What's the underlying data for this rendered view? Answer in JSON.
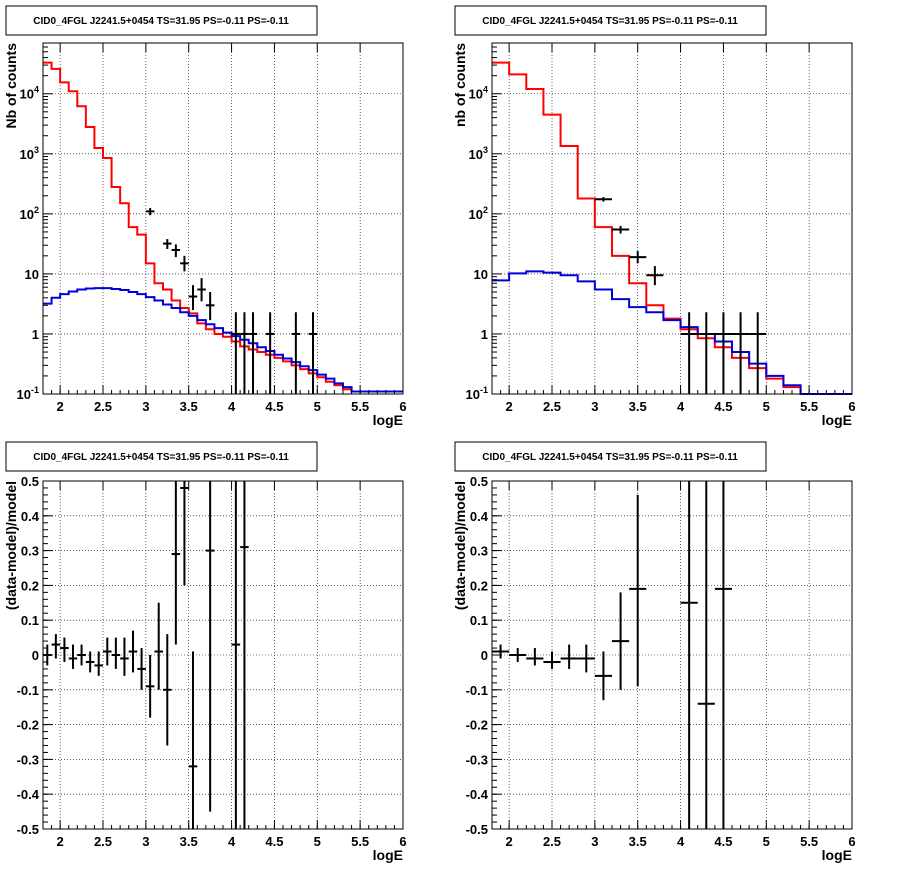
{
  "chart_data": [
    {
      "type": "histogram",
      "title": "CID0_4FGL J2241.5+0454 TS=31.95 PS=-0.11 PS=-0.11",
      "xlabel": "logE",
      "ylabel": "Nb of counts",
      "xlim": [
        1.8,
        6
      ],
      "ylim": [
        0.1,
        70000
      ],
      "yscale": "log",
      "grid": true,
      "xticks": [
        "2",
        "2.5",
        "3",
        "3.5",
        "4",
        "4.5",
        "5",
        "5.5",
        "6"
      ],
      "yticks": [
        {
          "value": 0.1,
          "base": "10",
          "exp": "-1"
        },
        {
          "value": 1,
          "base": "1",
          "exp": ""
        },
        {
          "value": 10,
          "base": "10",
          "exp": ""
        },
        {
          "value": 100,
          "base": "10",
          "exp": "2"
        },
        {
          "value": 1000,
          "base": "10",
          "exp": "3"
        },
        {
          "value": 10000,
          "base": "10",
          "exp": "4"
        }
      ],
      "bin_edges": [
        1.8,
        1.9,
        2.0,
        2.1,
        2.2,
        2.3,
        2.4,
        2.5,
        2.6,
        2.7,
        2.8,
        2.9,
        3.0,
        3.1,
        3.2,
        3.3,
        3.4,
        3.5,
        3.6,
        3.7,
        3.8,
        3.9,
        4.0,
        4.1,
        4.2,
        4.3,
        4.4,
        4.5,
        4.6,
        4.7,
        4.8,
        4.9,
        5.0,
        5.1,
        5.2,
        5.3,
        5.4,
        5.5,
        5.6,
        5.7,
        5.8,
        5.9,
        6.0
      ],
      "series": [
        {
          "color": "#ff0000",
          "values": [
            33000,
            26000,
            15500,
            11000,
            6200,
            2800,
            1250,
            850,
            280,
            150,
            60,
            45,
            15,
            7,
            5.5,
            3.6,
            2.7,
            2.2,
            1.5,
            1.2,
            1.0,
            0.9,
            0.75,
            0.62,
            0.55,
            0.5,
            0.45,
            0.4,
            0.35,
            0.3,
            0.26,
            0.22,
            0.19,
            0.16,
            0.14,
            0.12,
            0.11,
            0.11,
            0.11,
            0.11,
            0.11,
            0.11
          ]
        },
        {
          "color": "#0000dd",
          "values": [
            3.2,
            4.0,
            4.6,
            5.1,
            5.5,
            5.7,
            5.8,
            5.8,
            5.6,
            5.4,
            5.0,
            4.6,
            4.1,
            3.6,
            3.1,
            2.7,
            2.3,
            2.0,
            1.7,
            1.45,
            1.25,
            1.05,
            0.92,
            0.8,
            0.7,
            0.6,
            0.52,
            0.45,
            0.39,
            0.34,
            0.29,
            0.25,
            0.21,
            0.18,
            0.15,
            0.13,
            0.11,
            0.11,
            0.11,
            0.11,
            0.11,
            0.11
          ]
        }
      ],
      "points": [
        {
          "x": 3.05,
          "xerr": 0.05,
          "y": 110,
          "ylo": 95,
          "yhi": 125
        },
        {
          "x": 3.25,
          "xerr": 0.05,
          "y": 32,
          "ylo": 26,
          "yhi": 38
        },
        {
          "x": 3.35,
          "xerr": 0.05,
          "y": 25,
          "ylo": 19,
          "yhi": 31
        },
        {
          "x": 3.45,
          "xerr": 0.05,
          "y": 15,
          "ylo": 11,
          "yhi": 20
        },
        {
          "x": 3.55,
          "xerr": 0.05,
          "y": 4.2,
          "ylo": 2.5,
          "yhi": 6.5
        },
        {
          "x": 3.65,
          "xerr": 0.05,
          "y": 5.5,
          "ylo": 3.5,
          "yhi": 8.5
        },
        {
          "x": 3.75,
          "xerr": 0.05,
          "y": 3.0,
          "ylo": 1.7,
          "yhi": 5.0
        },
        {
          "x": 4.05,
          "xerr": 0.05,
          "y": 1.0,
          "ylo": 0.1,
          "yhi": 2.3
        },
        {
          "x": 4.15,
          "xerr": 0.05,
          "y": 1.0,
          "ylo": 0.1,
          "yhi": 2.3
        },
        {
          "x": 4.25,
          "xerr": 0.05,
          "y": 1.0,
          "ylo": 0.1,
          "yhi": 2.3
        },
        {
          "x": 4.45,
          "xerr": 0.05,
          "y": 1.0,
          "ylo": 0.1,
          "yhi": 2.3
        },
        {
          "x": 4.75,
          "xerr": 0.05,
          "y": 1.0,
          "ylo": 0.1,
          "yhi": 2.3
        },
        {
          "x": 4.95,
          "xerr": 0.05,
          "y": 1.0,
          "ylo": 0.1,
          "yhi": 2.3
        }
      ]
    },
    {
      "type": "histogram",
      "title": "CID0_4FGL J2241.5+0454 TS=31.95 PS=-0.11 PS=-0.11",
      "xlabel": "logE",
      "ylabel": "nb of counts",
      "xlim": [
        1.8,
        6
      ],
      "ylim": [
        0.1,
        70000
      ],
      "yscale": "log",
      "grid": true,
      "xticks": [
        "2",
        "2.5",
        "3",
        "3.5",
        "4",
        "4.5",
        "5",
        "5.5",
        "6"
      ],
      "yticks": [
        {
          "value": 0.1,
          "base": "10",
          "exp": "-1"
        },
        {
          "value": 1,
          "base": "1",
          "exp": ""
        },
        {
          "value": 10,
          "base": "10",
          "exp": ""
        },
        {
          "value": 100,
          "base": "10",
          "exp": "2"
        },
        {
          "value": 1000,
          "base": "10",
          "exp": "3"
        },
        {
          "value": 10000,
          "base": "10",
          "exp": "4"
        }
      ],
      "bin_edges": [
        1.8,
        2.0,
        2.2,
        2.4,
        2.6,
        2.8,
        3.0,
        3.2,
        3.4,
        3.6,
        3.8,
        4.0,
        4.2,
        4.4,
        4.6,
        4.8,
        5.0,
        5.2,
        5.4,
        5.6,
        5.8,
        6.0
      ],
      "series": [
        {
          "color": "#ff0000",
          "values": [
            33000,
            21000,
            12000,
            4500,
            1350,
            180,
            60,
            20,
            7,
            3.0,
            1.8,
            1.2,
            0.85,
            0.6,
            0.4,
            0.27,
            0.18,
            0.13,
            0.1,
            0.1,
            0.1
          ]
        },
        {
          "color": "#0000dd",
          "values": [
            7.8,
            10.2,
            11.0,
            10.5,
            9.5,
            7.5,
            5.5,
            3.8,
            2.8,
            2.3,
            1.7,
            1.3,
            1.0,
            0.75,
            0.5,
            0.32,
            0.2,
            0.14,
            0.1,
            0.1,
            0.1
          ]
        }
      ],
      "points": [
        {
          "x": 3.1,
          "xerr": 0.1,
          "y": 175,
          "ylo": 160,
          "yhi": 190
        },
        {
          "x": 3.3,
          "xerr": 0.1,
          "y": 55,
          "ylo": 47,
          "yhi": 63
        },
        {
          "x": 3.5,
          "xerr": 0.1,
          "y": 19,
          "ylo": 15,
          "yhi": 24
        },
        {
          "x": 3.7,
          "xerr": 0.1,
          "y": 9.5,
          "ylo": 6.5,
          "yhi": 13.5
        },
        {
          "x": 4.1,
          "xerr": 0.1,
          "y": 1.0,
          "ylo": 0.1,
          "yhi": 2.3
        },
        {
          "x": 4.3,
          "xerr": 0.1,
          "y": 1.0,
          "ylo": 0.1,
          "yhi": 2.3
        },
        {
          "x": 4.5,
          "xerr": 0.1,
          "y": 1.0,
          "ylo": 0.1,
          "yhi": 2.3
        },
        {
          "x": 4.7,
          "xerr": 0.1,
          "y": 1.0,
          "ylo": 0.1,
          "yhi": 2.3
        },
        {
          "x": 4.9,
          "xerr": 0.1,
          "y": 1.0,
          "ylo": 0.1,
          "yhi": 2.3
        }
      ]
    },
    {
      "type": "scatter",
      "title": "CID0_4FGL J2241.5+0454 TS=31.95 PS=-0.11 PS=-0.11",
      "xlabel": "logE",
      "ylabel": "(data-model)/model",
      "xlim": [
        1.8,
        6
      ],
      "ylim": [
        -0.5,
        0.5
      ],
      "yscale": "linear",
      "grid": true,
      "xticks": [
        "2",
        "2.5",
        "3",
        "3.5",
        "4",
        "4.5",
        "5",
        "5.5",
        "6"
      ],
      "yticks": [
        "-0.5",
        "-0.4",
        "-0.3",
        "-0.2",
        "-0.1",
        "0",
        "0.1",
        "0.2",
        "0.3",
        "0.4",
        "0.5"
      ],
      "points": [
        {
          "x": 1.85,
          "xerr": 0.05,
          "y": 0.0,
          "ylo": -0.03,
          "yhi": 0.03
        },
        {
          "x": 1.95,
          "xerr": 0.05,
          "y": 0.03,
          "ylo": -0.01,
          "yhi": 0.06
        },
        {
          "x": 2.05,
          "xerr": 0.05,
          "y": 0.02,
          "ylo": -0.02,
          "yhi": 0.05
        },
        {
          "x": 2.15,
          "xerr": 0.05,
          "y": -0.01,
          "ylo": -0.04,
          "yhi": 0.03
        },
        {
          "x": 2.25,
          "xerr": 0.05,
          "y": 0.0,
          "ylo": -0.03,
          "yhi": 0.03
        },
        {
          "x": 2.35,
          "xerr": 0.05,
          "y": -0.02,
          "ylo": -0.05,
          "yhi": 0.01
        },
        {
          "x": 2.45,
          "xerr": 0.05,
          "y": -0.03,
          "ylo": -0.06,
          "yhi": 0.01
        },
        {
          "x": 2.55,
          "xerr": 0.05,
          "y": 0.01,
          "ylo": -0.03,
          "yhi": 0.05
        },
        {
          "x": 2.65,
          "xerr": 0.05,
          "y": 0.0,
          "ylo": -0.04,
          "yhi": 0.05
        },
        {
          "x": 2.75,
          "xerr": 0.05,
          "y": -0.01,
          "ylo": -0.06,
          "yhi": 0.05
        },
        {
          "x": 2.85,
          "xerr": 0.05,
          "y": 0.01,
          "ylo": -0.05,
          "yhi": 0.07
        },
        {
          "x": 2.95,
          "xerr": 0.05,
          "y": -0.04,
          "ylo": -0.1,
          "yhi": 0.02
        },
        {
          "x": 3.05,
          "xerr": 0.05,
          "y": -0.09,
          "ylo": -0.18,
          "yhi": 0.0
        },
        {
          "x": 3.15,
          "xerr": 0.05,
          "y": 0.01,
          "ylo": -0.1,
          "yhi": 0.15
        },
        {
          "x": 3.25,
          "xerr": 0.05,
          "y": -0.1,
          "ylo": -0.26,
          "yhi": 0.06
        },
        {
          "x": 3.35,
          "xerr": 0.05,
          "y": 0.29,
          "ylo": 0.03,
          "yhi": 0.5
        },
        {
          "x": 3.45,
          "xerr": 0.05,
          "y": 0.48,
          "ylo": 0.2,
          "yhi": 0.5
        },
        {
          "x": 3.55,
          "xerr": 0.05,
          "y": -0.32,
          "ylo": -0.5,
          "yhi": 0.01
        },
        {
          "x": 3.75,
          "xerr": 0.05,
          "y": 0.3,
          "ylo": -0.45,
          "yhi": 0.5
        },
        {
          "x": 4.05,
          "xerr": 0.05,
          "y": 0.03,
          "ylo": -0.5,
          "yhi": 0.5
        },
        {
          "x": 4.15,
          "xerr": 0.05,
          "y": 0.31,
          "ylo": -0.5,
          "yhi": 0.5
        }
      ]
    },
    {
      "type": "scatter",
      "title": "CID0_4FGL J2241.5+0454 TS=31.95 PS=-0.11 PS=-0.11",
      "xlabel": "logE",
      "ylabel": "(data-model)/model",
      "xlim": [
        1.8,
        6
      ],
      "ylim": [
        -0.5,
        0.5
      ],
      "yscale": "linear",
      "grid": true,
      "xticks": [
        "2",
        "2.5",
        "3",
        "3.5",
        "4",
        "4.5",
        "5",
        "5.5",
        "6"
      ],
      "yticks": [
        "-0.5",
        "-0.4",
        "-0.3",
        "-0.2",
        "-0.1",
        "0",
        "0.1",
        "0.2",
        "0.3",
        "0.4",
        "0.5"
      ],
      "points": [
        {
          "x": 1.9,
          "xerr": 0.1,
          "y": 0.01,
          "ylo": -0.01,
          "yhi": 0.03
        },
        {
          "x": 2.1,
          "xerr": 0.1,
          "y": 0.0,
          "ylo": -0.02,
          "yhi": 0.02
        },
        {
          "x": 2.3,
          "xerr": 0.1,
          "y": -0.01,
          "ylo": -0.03,
          "yhi": 0.02
        },
        {
          "x": 2.5,
          "xerr": 0.1,
          "y": -0.02,
          "ylo": -0.04,
          "yhi": 0.01
        },
        {
          "x": 2.7,
          "xerr": 0.1,
          "y": -0.01,
          "ylo": -0.04,
          "yhi": 0.03
        },
        {
          "x": 2.9,
          "xerr": 0.1,
          "y": -0.01,
          "ylo": -0.05,
          "yhi": 0.03
        },
        {
          "x": 3.1,
          "xerr": 0.1,
          "y": -0.06,
          "ylo": -0.13,
          "yhi": 0.01
        },
        {
          "x": 3.3,
          "xerr": 0.1,
          "y": 0.04,
          "ylo": -0.1,
          "yhi": 0.18
        },
        {
          "x": 3.5,
          "xerr": 0.1,
          "y": 0.19,
          "ylo": -0.09,
          "yhi": 0.46
        },
        {
          "x": 4.1,
          "xerr": 0.1,
          "y": 0.15,
          "ylo": -0.5,
          "yhi": 0.5
        },
        {
          "x": 4.3,
          "xerr": 0.1,
          "y": -0.14,
          "ylo": -0.5,
          "yhi": 0.5
        },
        {
          "x": 4.5,
          "xerr": 0.1,
          "y": 0.19,
          "ylo": -0.5,
          "yhi": 0.5
        }
      ]
    }
  ]
}
